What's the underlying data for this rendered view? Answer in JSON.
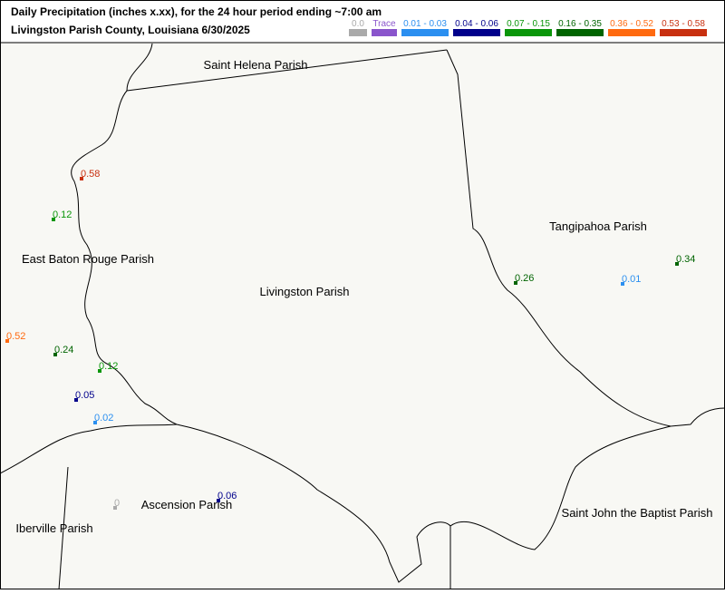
{
  "header": {
    "title": "Daily Precipitation (inches  x.xx),  for the 24 hour period ending ~7:00 am",
    "subtitle": "Livingston Parish County, Louisiana  6/30/2025"
  },
  "legend": [
    {
      "label": "0.0",
      "color": "#aaaaaa"
    },
    {
      "label": "Trace",
      "color": "#8a55cc"
    },
    {
      "label": "0.01 - 0.03",
      "color": "#2b8ff0"
    },
    {
      "label": "0.04 - 0.06",
      "color": "#00008b"
    },
    {
      "label": "0.07 - 0.15",
      "color": "#0a960a"
    },
    {
      "label": "0.16 - 0.35",
      "color": "#006400"
    },
    {
      "label": "0.36 - 0.52",
      "color": "#ff6a10"
    },
    {
      "label": "0.53 - 0.58",
      "color": "#c83010"
    }
  ],
  "parishes": [
    "Saint Helena Parish",
    "Tangipahoa Parish",
    "East Baton Rouge Parish",
    "Livingston Parish",
    "Ascension Parish",
    "Iberville Parish",
    "Saint John the Baptist Parish"
  ],
  "stations": [
    {
      "label": "0.58",
      "color": "#c83010"
    },
    {
      "label": "0.12",
      "color": "#0a960a"
    },
    {
      "label": "0.52",
      "color": "#ff6a10"
    },
    {
      "label": "0.24",
      "color": "#006400"
    },
    {
      "label": "0.12",
      "color": "#0a960a"
    },
    {
      "label": "0.05",
      "color": "#00008b"
    },
    {
      "label": "0.02",
      "color": "#2b8ff0"
    },
    {
      "label": "0",
      "color": "#aaaaaa"
    },
    {
      "label": "0.06",
      "color": "#00008b"
    },
    {
      "label": "0.26",
      "color": "#006400"
    },
    {
      "label": "0.01",
      "color": "#2b8ff0"
    },
    {
      "label": "0.34",
      "color": "#006400"
    }
  ]
}
